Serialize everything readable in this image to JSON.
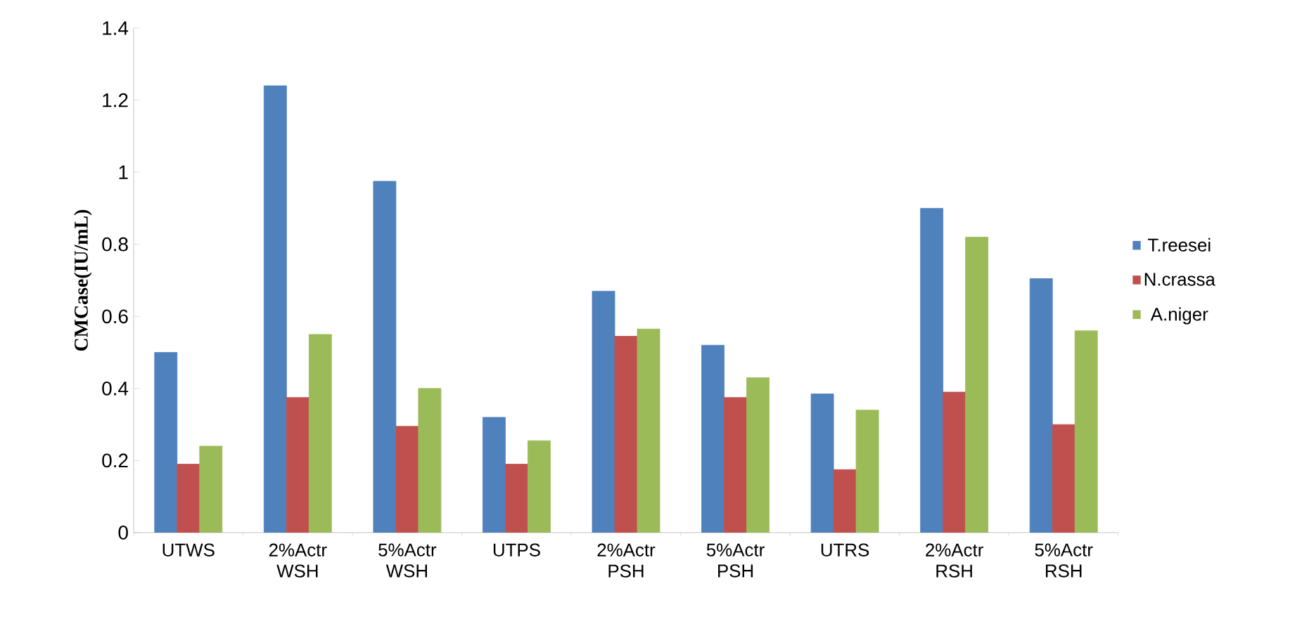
{
  "chart_data": {
    "type": "bar",
    "ylabel": "CMCase(IU/mL)",
    "categories": [
      "UTWS",
      "2%Actr WSH",
      "5%Actr WSH",
      "UTPS",
      "2%Actr PSH",
      "5%Actr PSH",
      "UTRS",
      "2%Actr RSH",
      "5%Actr RSH"
    ],
    "series": [
      {
        "name": "T.reesei",
        "color": "#4f81bd",
        "values": [
          0.5,
          1.24,
          0.975,
          0.32,
          0.67,
          0.52,
          0.385,
          0.9,
          0.705
        ]
      },
      {
        "name": "N.crassa",
        "color": "#c0504d",
        "values": [
          0.19,
          0.375,
          0.295,
          0.19,
          0.545,
          0.375,
          0.175,
          0.39,
          0.3
        ]
      },
      {
        "name": "A.niger",
        "color": "#9bbb59",
        "values": [
          0.24,
          0.55,
          0.4,
          0.255,
          0.565,
          0.43,
          0.34,
          0.82,
          0.56
        ]
      }
    ],
    "ylim": [
      0,
      1.4
    ],
    "yticks": [
      0,
      0.2,
      0.4,
      0.6,
      0.8,
      1,
      1.2,
      1.4
    ],
    "grid": false,
    "legend": "right"
  }
}
